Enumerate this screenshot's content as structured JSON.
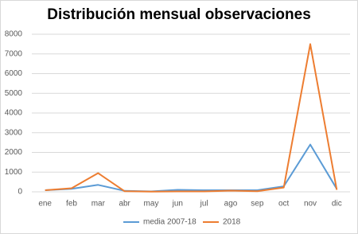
{
  "chart_data": {
    "type": "line",
    "title": "Distribución mensual observaciones",
    "categories": [
      "ene",
      "feb",
      "mar",
      "abr",
      "may",
      "jun",
      "jul",
      "ago",
      "sep",
      "oct",
      "nov",
      "dic"
    ],
    "series": [
      {
        "name": "media 2007-18",
        "color": "#5b9bd5",
        "values": [
          80,
          150,
          350,
          50,
          20,
          100,
          80,
          80,
          80,
          280,
          2400,
          150
        ]
      },
      {
        "name": "2018",
        "color": "#ed7d31",
        "values": [
          80,
          180,
          950,
          30,
          10,
          20,
          20,
          60,
          30,
          220,
          7500,
          100
        ]
      }
    ],
    "ylim": [
      0,
      8000
    ],
    "yticks": [
      0,
      1000,
      2000,
      3000,
      4000,
      5000,
      6000,
      7000,
      8000
    ],
    "grid": true,
    "legend": "bottom"
  }
}
